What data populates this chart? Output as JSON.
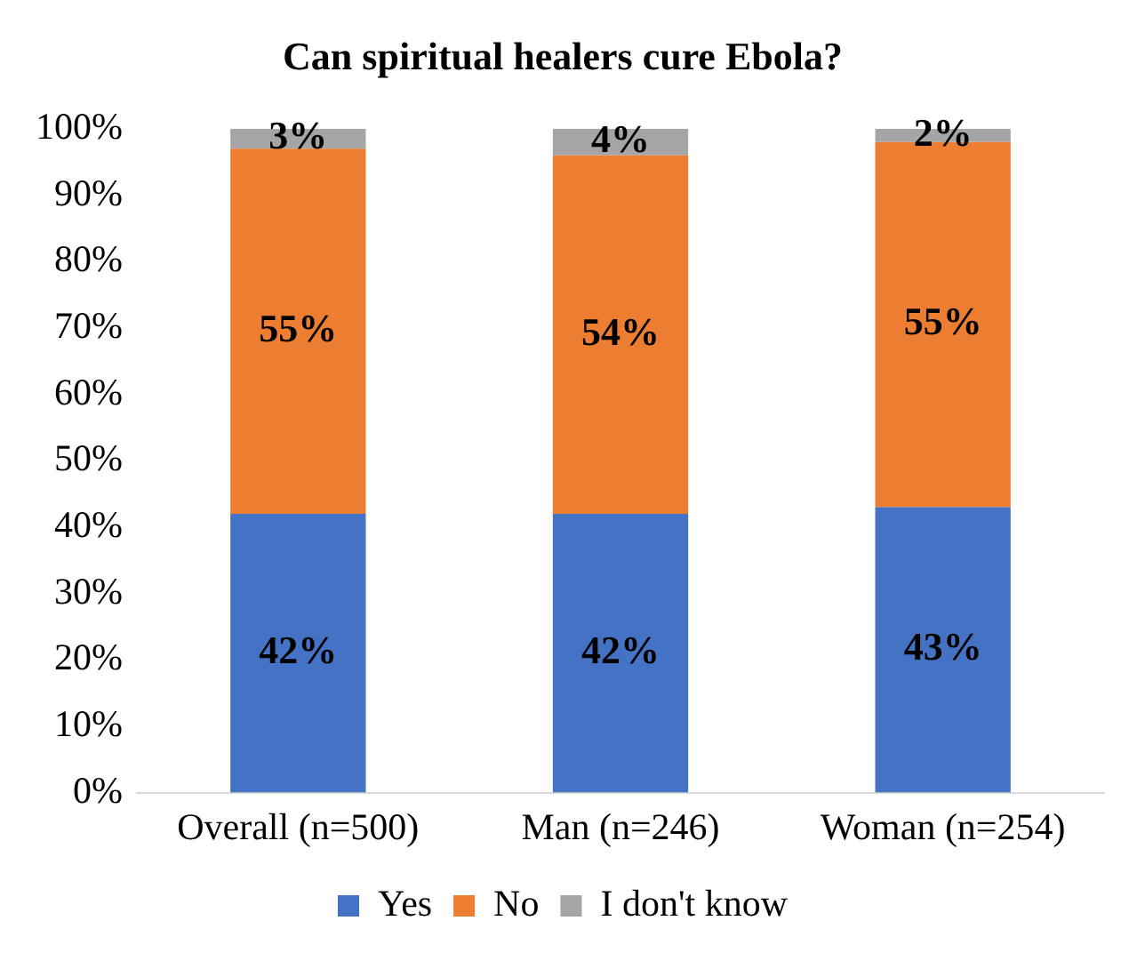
{
  "chart_data": {
    "type": "bar",
    "title": "Can spiritual healers cure Ebola?",
    "stacked": true,
    "legend": "bottom",
    "grid": false,
    "categories": [
      "Overall (n=500)",
      "Man (n=246)",
      "Woman (n=254)"
    ],
    "ylim": [
      0,
      100
    ],
    "yticks": [
      {
        "value": 0,
        "label": "0%"
      },
      {
        "value": 10,
        "label": "10%"
      },
      {
        "value": 20,
        "label": "20%"
      },
      {
        "value": 30,
        "label": "30%"
      },
      {
        "value": 40,
        "label": "40%"
      },
      {
        "value": 50,
        "label": "50%"
      },
      {
        "value": 60,
        "label": "60%"
      },
      {
        "value": 70,
        "label": "70%"
      },
      {
        "value": 80,
        "label": "80%"
      },
      {
        "value": 90,
        "label": "90%"
      },
      {
        "value": 100,
        "label": "100%"
      }
    ],
    "series": [
      {
        "name": "Yes",
        "color": "#4472c4",
        "values": [
          42,
          42,
          43
        ],
        "value_labels": [
          "42%",
          "42%",
          "43%"
        ]
      },
      {
        "name": "No",
        "color": "#ed7d31",
        "values": [
          55,
          54,
          55
        ],
        "value_labels": [
          "55%",
          "54%",
          "55%"
        ]
      },
      {
        "name": "I don't know",
        "color": "#a5a5a5",
        "values": [
          3,
          4,
          2
        ],
        "value_labels": [
          "3%",
          "4%",
          "2%"
        ]
      }
    ]
  }
}
